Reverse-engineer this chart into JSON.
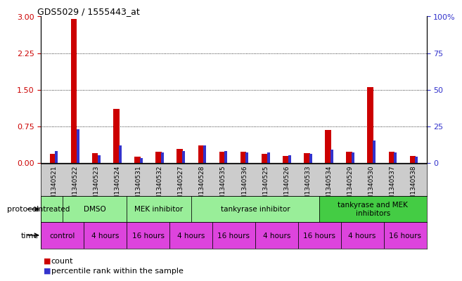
{
  "title": "GDS5029 / 1555443_at",
  "samples": [
    "GSM1340521",
    "GSM1340522",
    "GSM1340523",
    "GSM1340524",
    "GSM1340531",
    "GSM1340532",
    "GSM1340527",
    "GSM1340528",
    "GSM1340535",
    "GSM1340536",
    "GSM1340525",
    "GSM1340526",
    "GSM1340533",
    "GSM1340534",
    "GSM1340529",
    "GSM1340530",
    "GSM1340537",
    "GSM1340538"
  ],
  "count_values": [
    0.18,
    2.95,
    0.2,
    1.1,
    0.12,
    0.22,
    0.28,
    0.35,
    0.22,
    0.22,
    0.18,
    0.14,
    0.2,
    0.68,
    0.22,
    1.55,
    0.22,
    0.14
  ],
  "percentile_values": [
    8,
    23,
    5,
    12,
    3,
    7,
    8,
    12,
    8,
    7,
    7,
    5,
    6,
    9,
    7,
    15,
    7,
    4
  ],
  "ylim_left": [
    0,
    3
  ],
  "ylim_right": [
    0,
    100
  ],
  "yticks_left": [
    0,
    0.75,
    1.5,
    2.25,
    3
  ],
  "yticks_right": [
    0,
    25,
    50,
    75,
    100
  ],
  "left_color": "#cc0000",
  "right_color": "#3333cc",
  "plot_bg": "#ffffff",
  "label_bg": "#cccccc",
  "proto_color_light": "#99ee99",
  "proto_color_dark": "#44cc44",
  "time_color": "#dd44dd",
  "protocol_groups": [
    {
      "label": "untreated",
      "start": 0,
      "end": 2,
      "dark": false
    },
    {
      "label": "DMSO",
      "start": 2,
      "end": 8,
      "dark": false
    },
    {
      "label": "MEK inhibitor",
      "start": 8,
      "end": 14,
      "dark": false
    },
    {
      "label": "tankyrase inhibitor",
      "start": 14,
      "end": 26,
      "dark": false
    },
    {
      "label": "tankyrase and MEK\ninhibitors",
      "start": 26,
      "end": 36,
      "dark": true
    }
  ],
  "time_groups": [
    {
      "label": "control",
      "start": 0,
      "end": 4
    },
    {
      "label": "4 hours",
      "start": 4,
      "end": 8
    },
    {
      "label": "16 hours",
      "start": 8,
      "end": 12
    },
    {
      "label": "4 hours",
      "start": 12,
      "end": 16
    },
    {
      "label": "16 hours",
      "start": 16,
      "end": 20
    },
    {
      "label": "4 hours",
      "start": 20,
      "end": 24
    },
    {
      "label": "16 hours",
      "start": 24,
      "end": 28
    },
    {
      "label": "4 hours",
      "start": 28,
      "end": 32
    },
    {
      "label": "16 hours",
      "start": 32,
      "end": 36
    }
  ],
  "n_samples": 18,
  "legend_items": [
    {
      "label": "count",
      "color": "#cc0000"
    },
    {
      "label": "percentile rank within the sample",
      "color": "#3333cc"
    }
  ]
}
